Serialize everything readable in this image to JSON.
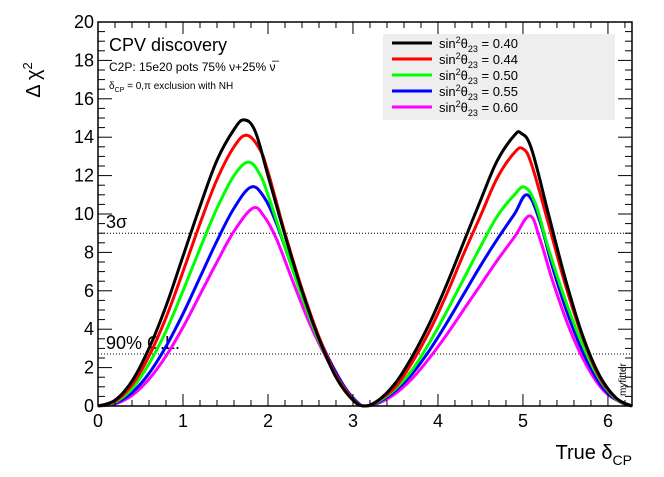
{
  "chart_data": {
    "type": "line",
    "title": "",
    "xlabel": "True δ",
    "xlabel_sub": "CP",
    "ylabel": "Δ χ",
    "ylabel_sup": "2",
    "xlim": [
      0,
      6.283
    ],
    "ylim": [
      0,
      20
    ],
    "xticks": [
      0,
      1,
      2,
      3,
      4,
      5,
      6
    ],
    "yticks": [
      0,
      2,
      4,
      6,
      8,
      10,
      12,
      14,
      16,
      18,
      20
    ],
    "annotations": {
      "heading": "CPV discovery",
      "config": "C2P: 15e20 pots  75% ν+25% ν̅",
      "exclusion_prefix": "δ",
      "exclusion_sub": "CP",
      "exclusion_suffix": " = 0,π exclusion with NH",
      "watermark": "myfitter"
    },
    "reference_lines": [
      {
        "label": "3σ",
        "y": 9.0
      },
      {
        "label": "90% C.L.",
        "y": 2.71
      }
    ],
    "legend": {
      "position": "top-right"
    },
    "series": [
      {
        "name": "sin²θ₂₃ = 0.40",
        "theta_value": "0.40",
        "color": "#000000",
        "x": [
          0,
          0.2,
          0.4,
          0.6,
          0.8,
          1.0,
          1.2,
          1.4,
          1.6,
          1.72,
          1.85,
          2.0,
          2.2,
          2.4,
          2.6,
          2.8,
          3.0,
          3.14,
          3.3,
          3.5,
          3.7,
          3.9,
          4.1,
          4.3,
          4.5,
          4.7,
          4.9,
          4.98,
          5.1,
          5.3,
          5.5,
          5.7,
          5.9,
          6.1,
          6.283
        ],
        "y": [
          0,
          0.3,
          1.3,
          3.0,
          5.2,
          7.8,
          10.4,
          12.8,
          14.4,
          14.9,
          14.3,
          12.0,
          8.9,
          6.0,
          3.5,
          1.5,
          0.3,
          0,
          0.3,
          1.2,
          2.6,
          4.3,
          6.3,
          8.5,
          10.7,
          12.8,
          14.1,
          14.2,
          13.4,
          10.0,
          6.6,
          3.7,
          1.6,
          0.4,
          0
        ]
      },
      {
        "name": "sin²θ₂₃ = 0.44",
        "theta_value": "0.44",
        "color": "#ff0000",
        "x": [
          0,
          0.2,
          0.4,
          0.6,
          0.8,
          1.0,
          1.2,
          1.4,
          1.6,
          1.75,
          1.9,
          2.0,
          2.2,
          2.4,
          2.6,
          2.8,
          3.0,
          3.14,
          3.3,
          3.5,
          3.7,
          3.9,
          4.1,
          4.3,
          4.5,
          4.7,
          4.9,
          5.0,
          5.1,
          5.3,
          5.5,
          5.7,
          5.9,
          6.1,
          6.283
        ],
        "y": [
          0,
          0.25,
          1.1,
          2.6,
          4.6,
          7.0,
          9.5,
          11.8,
          13.5,
          14.1,
          13.4,
          12.2,
          9.0,
          6.1,
          3.6,
          1.6,
          0.35,
          0,
          0.3,
          1.0,
          2.3,
          3.9,
          5.8,
          7.9,
          9.9,
          11.9,
          13.2,
          13.4,
          12.6,
          9.5,
          6.3,
          3.6,
          1.5,
          0.4,
          0
        ]
      },
      {
        "name": "sin²θ₂₃ = 0.50",
        "theta_value": "0.50",
        "color": "#00ff00",
        "x": [
          0,
          0.2,
          0.4,
          0.6,
          0.8,
          1.0,
          1.2,
          1.4,
          1.6,
          1.77,
          1.9,
          2.0,
          2.2,
          2.4,
          2.6,
          2.8,
          3.0,
          3.14,
          3.3,
          3.5,
          3.7,
          3.9,
          4.1,
          4.3,
          4.5,
          4.7,
          4.9,
          5.02,
          5.15,
          5.3,
          5.5,
          5.7,
          5.9,
          6.1,
          6.283
        ],
        "y": [
          0,
          0.2,
          0.9,
          2.2,
          3.9,
          6.0,
          8.2,
          10.3,
          12.0,
          12.7,
          12.1,
          11.0,
          8.3,
          5.7,
          3.4,
          1.6,
          0.35,
          0,
          0.25,
          0.9,
          1.9,
          3.3,
          4.9,
          6.6,
          8.3,
          9.9,
          11.0,
          11.4,
          10.5,
          8.2,
          5.5,
          3.2,
          1.4,
          0.35,
          0
        ]
      },
      {
        "name": "sin²θ₂₃ = 0.55",
        "theta_value": "0.55",
        "color": "#0000ff",
        "x": [
          0,
          0.2,
          0.4,
          0.6,
          0.8,
          1.0,
          1.2,
          1.4,
          1.6,
          1.8,
          1.95,
          2.1,
          2.3,
          2.5,
          2.7,
          2.9,
          3.05,
          3.14,
          3.3,
          3.5,
          3.7,
          3.9,
          4.1,
          4.3,
          4.5,
          4.7,
          4.9,
          5.05,
          5.2,
          5.35,
          5.55,
          5.75,
          5.95,
          6.15,
          6.283
        ],
        "y": [
          0,
          0.15,
          0.7,
          1.7,
          3.1,
          4.8,
          6.7,
          8.6,
          10.3,
          11.4,
          10.9,
          9.5,
          7.0,
          4.6,
          2.6,
          1.0,
          0.2,
          0,
          0.2,
          0.8,
          1.7,
          2.9,
          4.3,
          5.8,
          7.3,
          8.7,
          10.0,
          11.0,
          9.6,
          7.2,
          4.5,
          2.4,
          0.9,
          0.2,
          0
        ]
      },
      {
        "name": "sin²θ₂₃ = 0.60",
        "theta_value": "0.60",
        "color": "#ff00ff",
        "x": [
          0,
          0.2,
          0.4,
          0.6,
          0.8,
          1.0,
          1.2,
          1.4,
          1.6,
          1.82,
          1.95,
          2.1,
          2.3,
          2.5,
          2.7,
          2.9,
          3.05,
          3.14,
          3.3,
          3.5,
          3.7,
          3.9,
          4.1,
          4.3,
          4.5,
          4.7,
          4.9,
          5.08,
          5.2,
          5.35,
          5.55,
          5.75,
          5.95,
          6.15,
          6.283
        ],
        "y": [
          0,
          0.1,
          0.55,
          1.4,
          2.6,
          4.1,
          5.8,
          7.5,
          9.1,
          10.3,
          9.9,
          8.7,
          6.4,
          4.2,
          2.4,
          0.9,
          0.2,
          0,
          0.15,
          0.65,
          1.45,
          2.5,
          3.7,
          5.0,
          6.3,
          7.6,
          8.8,
          9.9,
          8.7,
          6.5,
          4.0,
          2.1,
          0.8,
          0.2,
          0
        ]
      }
    ]
  }
}
